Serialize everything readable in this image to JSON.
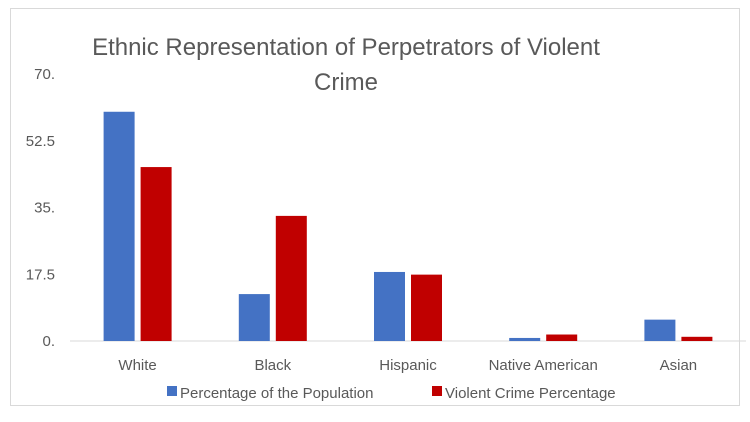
{
  "chart_data": {
    "type": "bar",
    "title_lines": [
      "Ethnic Representation of Perpetrators of Violent",
      "Crime"
    ],
    "categories": [
      "White",
      "Black",
      "Hispanic",
      "Native American",
      "Asian"
    ],
    "series": [
      {
        "name": "Percentage of the Population",
        "color": "#4472c4",
        "values": [
          60.1,
          12.3,
          18.1,
          0.8,
          5.6
        ]
      },
      {
        "name": "Violent Crime Percentage",
        "color": "#c00000",
        "values": [
          45.6,
          32.8,
          17.4,
          1.7,
          1.1
        ]
      }
    ],
    "ylim": [
      0,
      70
    ],
    "yticks": [
      "0.",
      "17.5",
      "35.",
      "52.5",
      "70."
    ],
    "gridlines": false,
    "legend_position": "bottom"
  }
}
